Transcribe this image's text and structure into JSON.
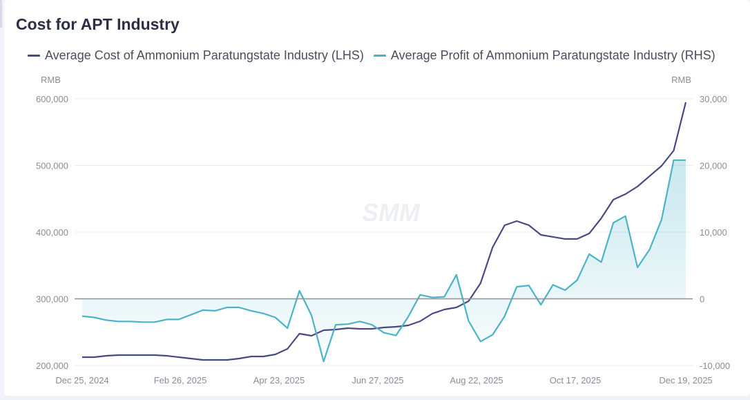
{
  "chart_data": {
    "type": "line",
    "title": "Cost for APT Industry",
    "left_unit": "RMB",
    "right_unit": "RMB",
    "watermark": "SMM",
    "x_tick_labels": [
      "Dec 25, 2024",
      "Feb 26, 2025",
      "Apr 23, 2025",
      "Jun 27, 2025",
      "Aug 22, 2025",
      "Oct 17, 2025",
      "Dec 19, 2025"
    ],
    "y_left": {
      "min": 200000,
      "max": 600000,
      "ticks": [
        200000,
        300000,
        400000,
        500000,
        600000
      ],
      "tick_labels": [
        "200,000",
        "300,000",
        "400,000",
        "500,000",
        "600,000"
      ]
    },
    "y_right": {
      "min": -10000,
      "max": 30000,
      "ticks": [
        -10000,
        0,
        10000,
        20000,
        30000
      ],
      "tick_labels": [
        "-10,000",
        "0",
        "10,000",
        "20,000",
        "30,000"
      ]
    },
    "grid": true,
    "legend_position": "top-left",
    "series": [
      {
        "name": "Average Cost of Ammonium Paratungstate Industry (LHS)",
        "axis": "left",
        "color": "#464a82",
        "values": [
          212400,
          212400,
          214500,
          215500,
          215500,
          215500,
          215500,
          214500,
          212400,
          210400,
          208300,
          208300,
          208300,
          210400,
          213500,
          213500,
          216600,
          224900,
          247700,
          244600,
          252800,
          253900,
          256000,
          254900,
          254900,
          257000,
          258000,
          260100,
          266300,
          277700,
          283900,
          287000,
          296400,
          323300,
          377200,
          410400,
          416600,
          410400,
          395900,
          392800,
          389700,
          389700,
          398000,
          420800,
          448700,
          457000,
          468400,
          484000,
          499500,
          522300,
          594800
        ]
      },
      {
        "name": "Average Profit of Ammonium Paratungstate Industry (RHS)",
        "axis": "right",
        "color": "#4bb3c7",
        "area": true,
        "values": [
          -2600,
          -2800,
          -3200,
          -3400,
          -3400,
          -3500,
          -3500,
          -3100,
          -3100,
          -2400,
          -1700,
          -1800,
          -1300,
          -1300,
          -1800,
          -2200,
          -2800,
          -4400,
          1200,
          -2500,
          -9400,
          -3900,
          -3800,
          -3400,
          -3900,
          -5100,
          -5500,
          -2700,
          600,
          200,
          300,
          3600,
          -3300,
          -6400,
          -5400,
          -2600,
          1800,
          2000,
          -900,
          2100,
          1300,
          2800,
          6700,
          5500,
          11400,
          12400,
          4700,
          7400,
          11900,
          20800,
          20800
        ]
      }
    ]
  }
}
